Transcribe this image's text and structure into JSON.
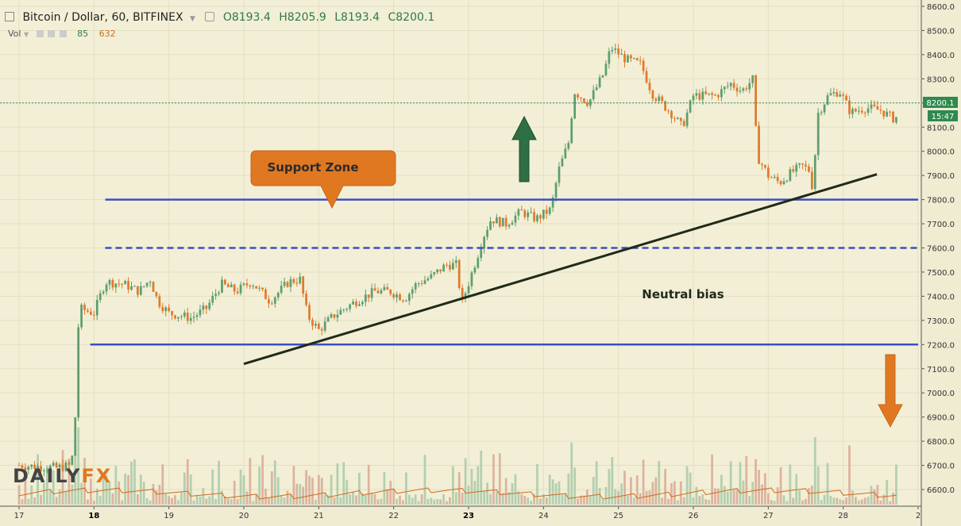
{
  "header": {
    "symbol": "Bitcoin / Dollar, 60, BITFINEX",
    "o": "O8193.4",
    "h": "H8205.9",
    "l": "L8193.4",
    "c": "C8200.1"
  },
  "volume_legend": {
    "label": "Vol",
    "v1": "85",
    "v2": "632"
  },
  "logo": {
    "part1": "DAILY",
    "part2": "FX"
  },
  "price_badge": {
    "price": "8200.1",
    "time": "15:47"
  },
  "colors": {
    "up": "#5f9e6e",
    "down": "#e07a2e",
    "line": "#3c4fbf",
    "trend": "#1f2a1a",
    "bg": "#f2efd6"
  },
  "chart_data": {
    "type": "candlestick",
    "title": "Bitcoin / Dollar, 60, BITFINEX",
    "x_ticks": [
      "17",
      "18",
      "19",
      "20",
      "21",
      "22",
      "23",
      "24",
      "25",
      "26",
      "27",
      "28",
      "2"
    ],
    "y_ticks": [
      "8600.0",
      "8500.0",
      "8400.0",
      "8300.0",
      "8200.0",
      "8100.0",
      "8000.0",
      "7900.0",
      "7800.0",
      "7700.0",
      "7600.0",
      "7500.0",
      "7400.0",
      "7300.0",
      "7200.0",
      "7100.0",
      "7000.0",
      "6900.0",
      "6800.0",
      "6700.0",
      "6600.0"
    ],
    "ylim": [
      6550,
      8620
    ],
    "xlim": [
      17,
      29.05
    ],
    "support_lines": [
      {
        "price": 7800,
        "style": "solid",
        "x": [
          18.15,
          29
        ]
      },
      {
        "price": 7600,
        "style": "dashed",
        "x": [
          18.15,
          29
        ]
      },
      {
        "price": 7200,
        "style": "solid",
        "x": [
          17.95,
          29
        ]
      }
    ],
    "trendline": {
      "x": [
        20,
        28.45
      ],
      "y": [
        7120,
        7905
      ]
    },
    "current_price_line": 8200.1,
    "annotations": [
      {
        "text": "Support Zone",
        "kind": "callout"
      },
      {
        "text": "Neutral bias",
        "kind": "label"
      }
    ],
    "arrows": [
      {
        "direction": "up",
        "color": "green"
      },
      {
        "direction": "down",
        "color": "orange"
      }
    ],
    "keypoints": [
      [
        17.0,
        6700
      ],
      [
        17.5,
        6690
      ],
      [
        17.7,
        6700
      ],
      [
        17.75,
        6900
      ],
      [
        17.8,
        7350
      ],
      [
        18.0,
        7330
      ],
      [
        18.15,
        7460
      ],
      [
        18.4,
        7450
      ],
      [
        18.6,
        7420
      ],
      [
        18.75,
        7470
      ],
      [
        18.85,
        7380
      ],
      [
        19.0,
        7330
      ],
      [
        19.3,
        7310
      ],
      [
        19.5,
        7350
      ],
      [
        19.7,
        7450
      ],
      [
        19.9,
        7420
      ],
      [
        20.1,
        7460
      ],
      [
        20.35,
        7380
      ],
      [
        20.6,
        7460
      ],
      [
        20.75,
        7470
      ],
      [
        20.85,
        7320
      ],
      [
        21.0,
        7260
      ],
      [
        21.2,
        7320
      ],
      [
        21.5,
        7380
      ],
      [
        21.75,
        7420
      ],
      [
        21.95,
        7420
      ],
      [
        22.15,
        7390
      ],
      [
        22.3,
        7450
      ],
      [
        22.5,
        7480
      ],
      [
        22.7,
        7530
      ],
      [
        22.85,
        7530
      ],
      [
        22.9,
        7360
      ],
      [
        23.1,
        7550
      ],
      [
        23.2,
        7650
      ],
      [
        23.3,
        7720
      ],
      [
        23.5,
        7700
      ],
      [
        23.7,
        7750
      ],
      [
        23.9,
        7720
      ],
      [
        24.1,
        7760
      ],
      [
        24.2,
        7920
      ],
      [
        24.35,
        8050
      ],
      [
        24.4,
        8250
      ],
      [
        24.6,
        8200
      ],
      [
        24.8,
        8320
      ],
      [
        24.9,
        8430
      ],
      [
        25.1,
        8380
      ],
      [
        25.3,
        8360
      ],
      [
        25.45,
        8240
      ],
      [
        25.7,
        8160
      ],
      [
        25.85,
        8100
      ],
      [
        26.0,
        8230
      ],
      [
        26.3,
        8230
      ],
      [
        26.5,
        8280
      ],
      [
        26.65,
        8250
      ],
      [
        26.8,
        8300
      ],
      [
        26.85,
        7980
      ],
      [
        27.0,
        7900
      ],
      [
        27.15,
        7870
      ],
      [
        27.3,
        7910
      ],
      [
        27.45,
        7940
      ],
      [
        27.55,
        7920
      ],
      [
        27.6,
        7830
      ],
      [
        27.65,
        8150
      ],
      [
        27.8,
        8230
      ],
      [
        27.95,
        8250
      ],
      [
        28.1,
        8160
      ],
      [
        28.3,
        8180
      ],
      [
        28.5,
        8170
      ],
      [
        28.6,
        8150
      ],
      [
        28.7,
        8130
      ],
      [
        28.75,
        8200
      ]
    ]
  }
}
